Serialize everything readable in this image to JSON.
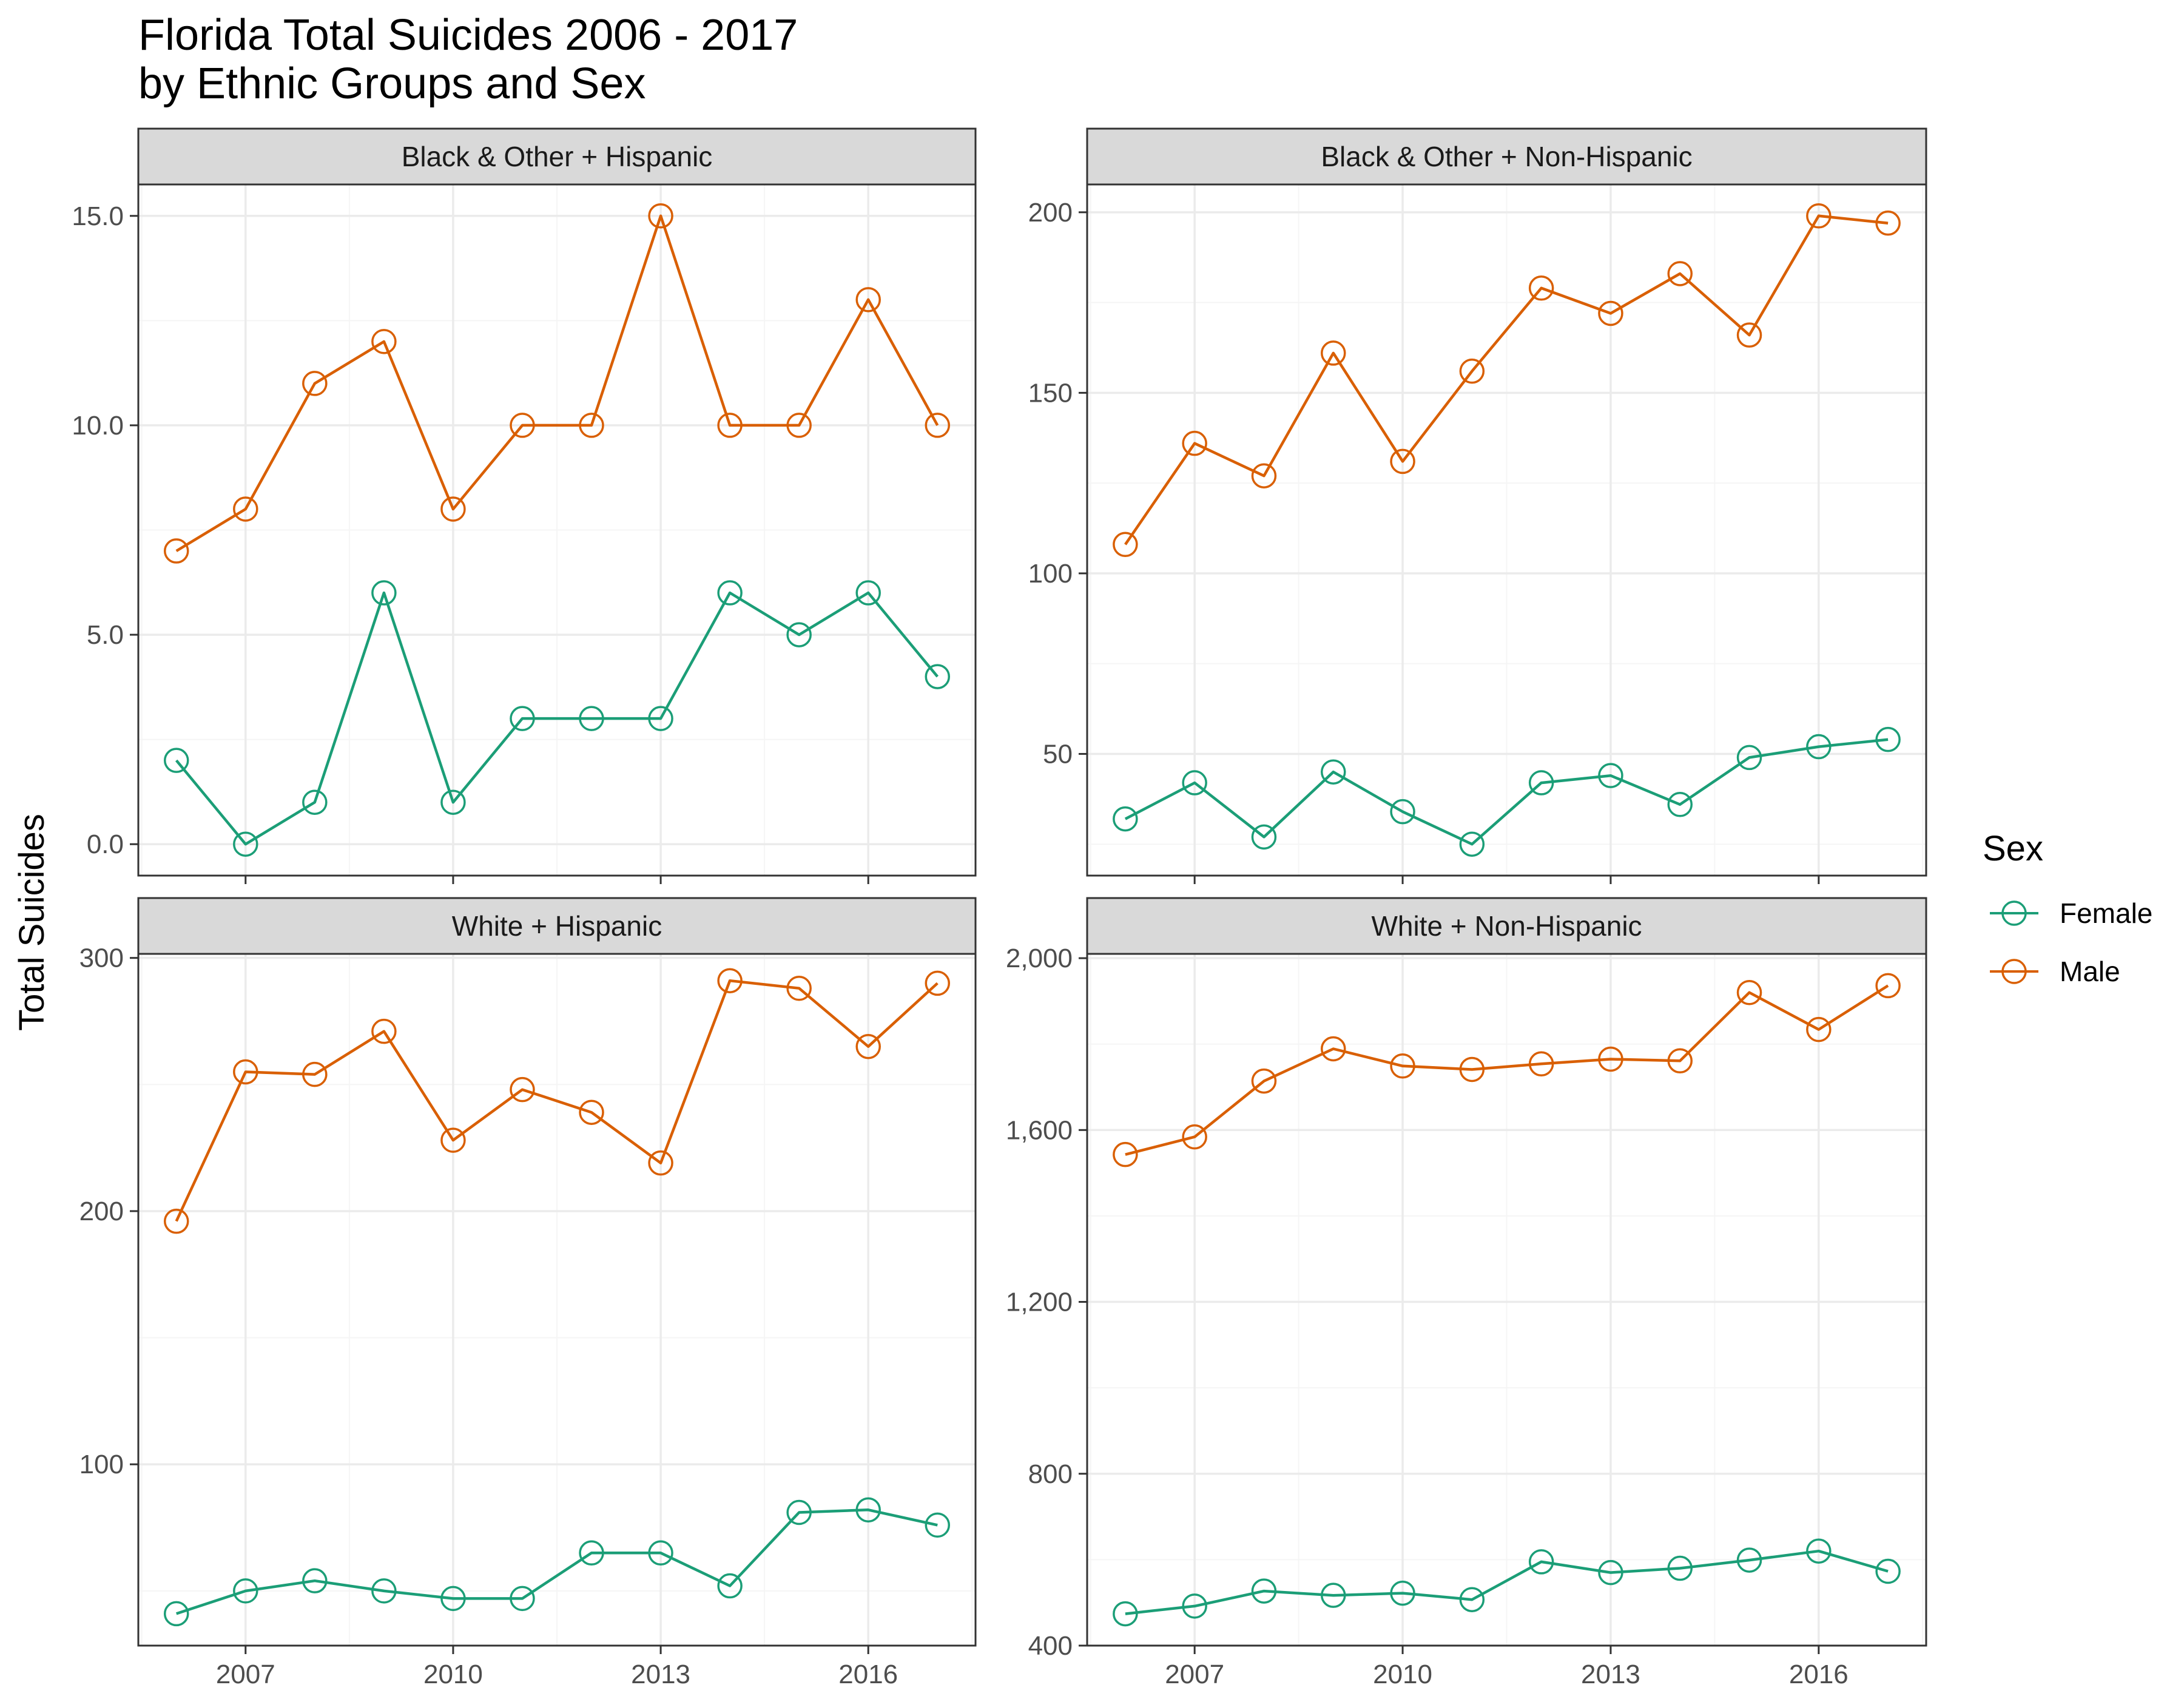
{
  "title": {
    "line1": "Florida Total Suicides 2006 - 2017",
    "line2": "by Ethnic Groups and Sex"
  },
  "ylabel": "Total Suicides",
  "legend": {
    "title": "Sex",
    "items": [
      "Female",
      "Male"
    ]
  },
  "colors": {
    "Female": "#1b9e77",
    "Male": "#d95f02",
    "strip_fill": "#d9d9d9",
    "grid_major": "#ebebeb",
    "grid_minor": "#f5f5f5",
    "panel_border": "#333333"
  },
  "chart_data": [
    {
      "type": "line",
      "panel": "Black & Other + Hispanic",
      "x": [
        2006,
        2007,
        2008,
        2009,
        2010,
        2011,
        2012,
        2013,
        2014,
        2015,
        2016,
        2017
      ],
      "series": [
        {
          "name": "Female",
          "values": [
            2,
            0,
            1,
            6,
            1,
            3,
            3,
            3,
            6,
            5,
            6,
            4
          ]
        },
        {
          "name": "Male",
          "values": [
            7,
            8,
            11,
            12,
            8,
            10,
            10,
            15,
            10,
            10,
            13,
            10
          ]
        }
      ],
      "ylim": [
        -0.75,
        15.75
      ],
      "yticks": [
        0,
        5,
        10,
        15
      ],
      "ytick_labels": [
        "0.0",
        "5.0",
        "10.0",
        "15.0"
      ],
      "xticks": [
        2007,
        2010,
        2013,
        2016
      ],
      "xtick_labels": [
        "2007",
        "2010",
        "2013",
        "2016"
      ],
      "show_x_labels": false
    },
    {
      "type": "line",
      "panel": "Black & Other + Non-Hispanic",
      "x": [
        2006,
        2007,
        2008,
        2009,
        2010,
        2011,
        2012,
        2013,
        2014,
        2015,
        2016,
        2017
      ],
      "series": [
        {
          "name": "Female",
          "values": [
            32,
            42,
            27,
            45,
            34,
            25,
            42,
            44,
            36,
            49,
            52,
            54
          ]
        },
        {
          "name": "Male",
          "values": [
            108,
            136,
            127,
            161,
            131,
            156,
            179,
            172,
            183,
            166,
            199,
            197
          ]
        }
      ],
      "ylim": [
        16.3,
        207.7
      ],
      "yticks": [
        50,
        100,
        150,
        200
      ],
      "ytick_labels": [
        "50",
        "100",
        "150",
        "200"
      ],
      "xticks": [
        2007,
        2010,
        2013,
        2016
      ],
      "xtick_labels": [
        "2007",
        "2010",
        "2013",
        "2016"
      ],
      "show_x_labels": false
    },
    {
      "type": "line",
      "panel": "White + Hispanic",
      "x": [
        2006,
        2007,
        2008,
        2009,
        2010,
        2011,
        2012,
        2013,
        2014,
        2015,
        2016,
        2017
      ],
      "series": [
        {
          "name": "Female",
          "values": [
            41,
            50,
            54,
            50,
            47,
            47,
            65,
            65,
            52,
            81,
            82,
            76
          ]
        },
        {
          "name": "Male",
          "values": [
            196,
            255,
            254,
            271,
            228,
            248,
            239,
            219,
            291,
            288,
            265,
            290
          ]
        }
      ],
      "ylim": [
        28.4,
        301.6
      ],
      "yticks": [
        100,
        200,
        300
      ],
      "ytick_labels": [
        "100",
        "200",
        "300"
      ],
      "xticks": [
        2007,
        2010,
        2013,
        2016
      ],
      "xtick_labels": [
        "2007",
        "2010",
        "2013",
        "2016"
      ],
      "show_x_labels": true
    },
    {
      "type": "line",
      "panel": "White + Non-Hispanic",
      "x": [
        2006,
        2007,
        2008,
        2009,
        2010,
        2011,
        2012,
        2013,
        2014,
        2015,
        2016,
        2017
      ],
      "series": [
        {
          "name": "Female",
          "values": [
            474,
            492,
            527,
            517,
            522,
            507,
            595,
            570,
            580,
            599,
            620,
            573
          ]
        },
        {
          "name": "Male",
          "values": [
            1543,
            1584,
            1714,
            1789,
            1749,
            1741,
            1754,
            1765,
            1761,
            1920,
            1834,
            1936
          ]
        }
      ],
      "ylim": [
        400,
        2010
      ],
      "yticks": [
        400,
        800,
        1200,
        1600,
        2000
      ],
      "ytick_labels": [
        "400",
        "800",
        "1,200",
        "1,600",
        "2,000"
      ],
      "xticks": [
        2007,
        2010,
        2013,
        2016
      ],
      "xtick_labels": [
        "2007",
        "2010",
        "2013",
        "2016"
      ],
      "show_x_labels": true
    }
  ]
}
